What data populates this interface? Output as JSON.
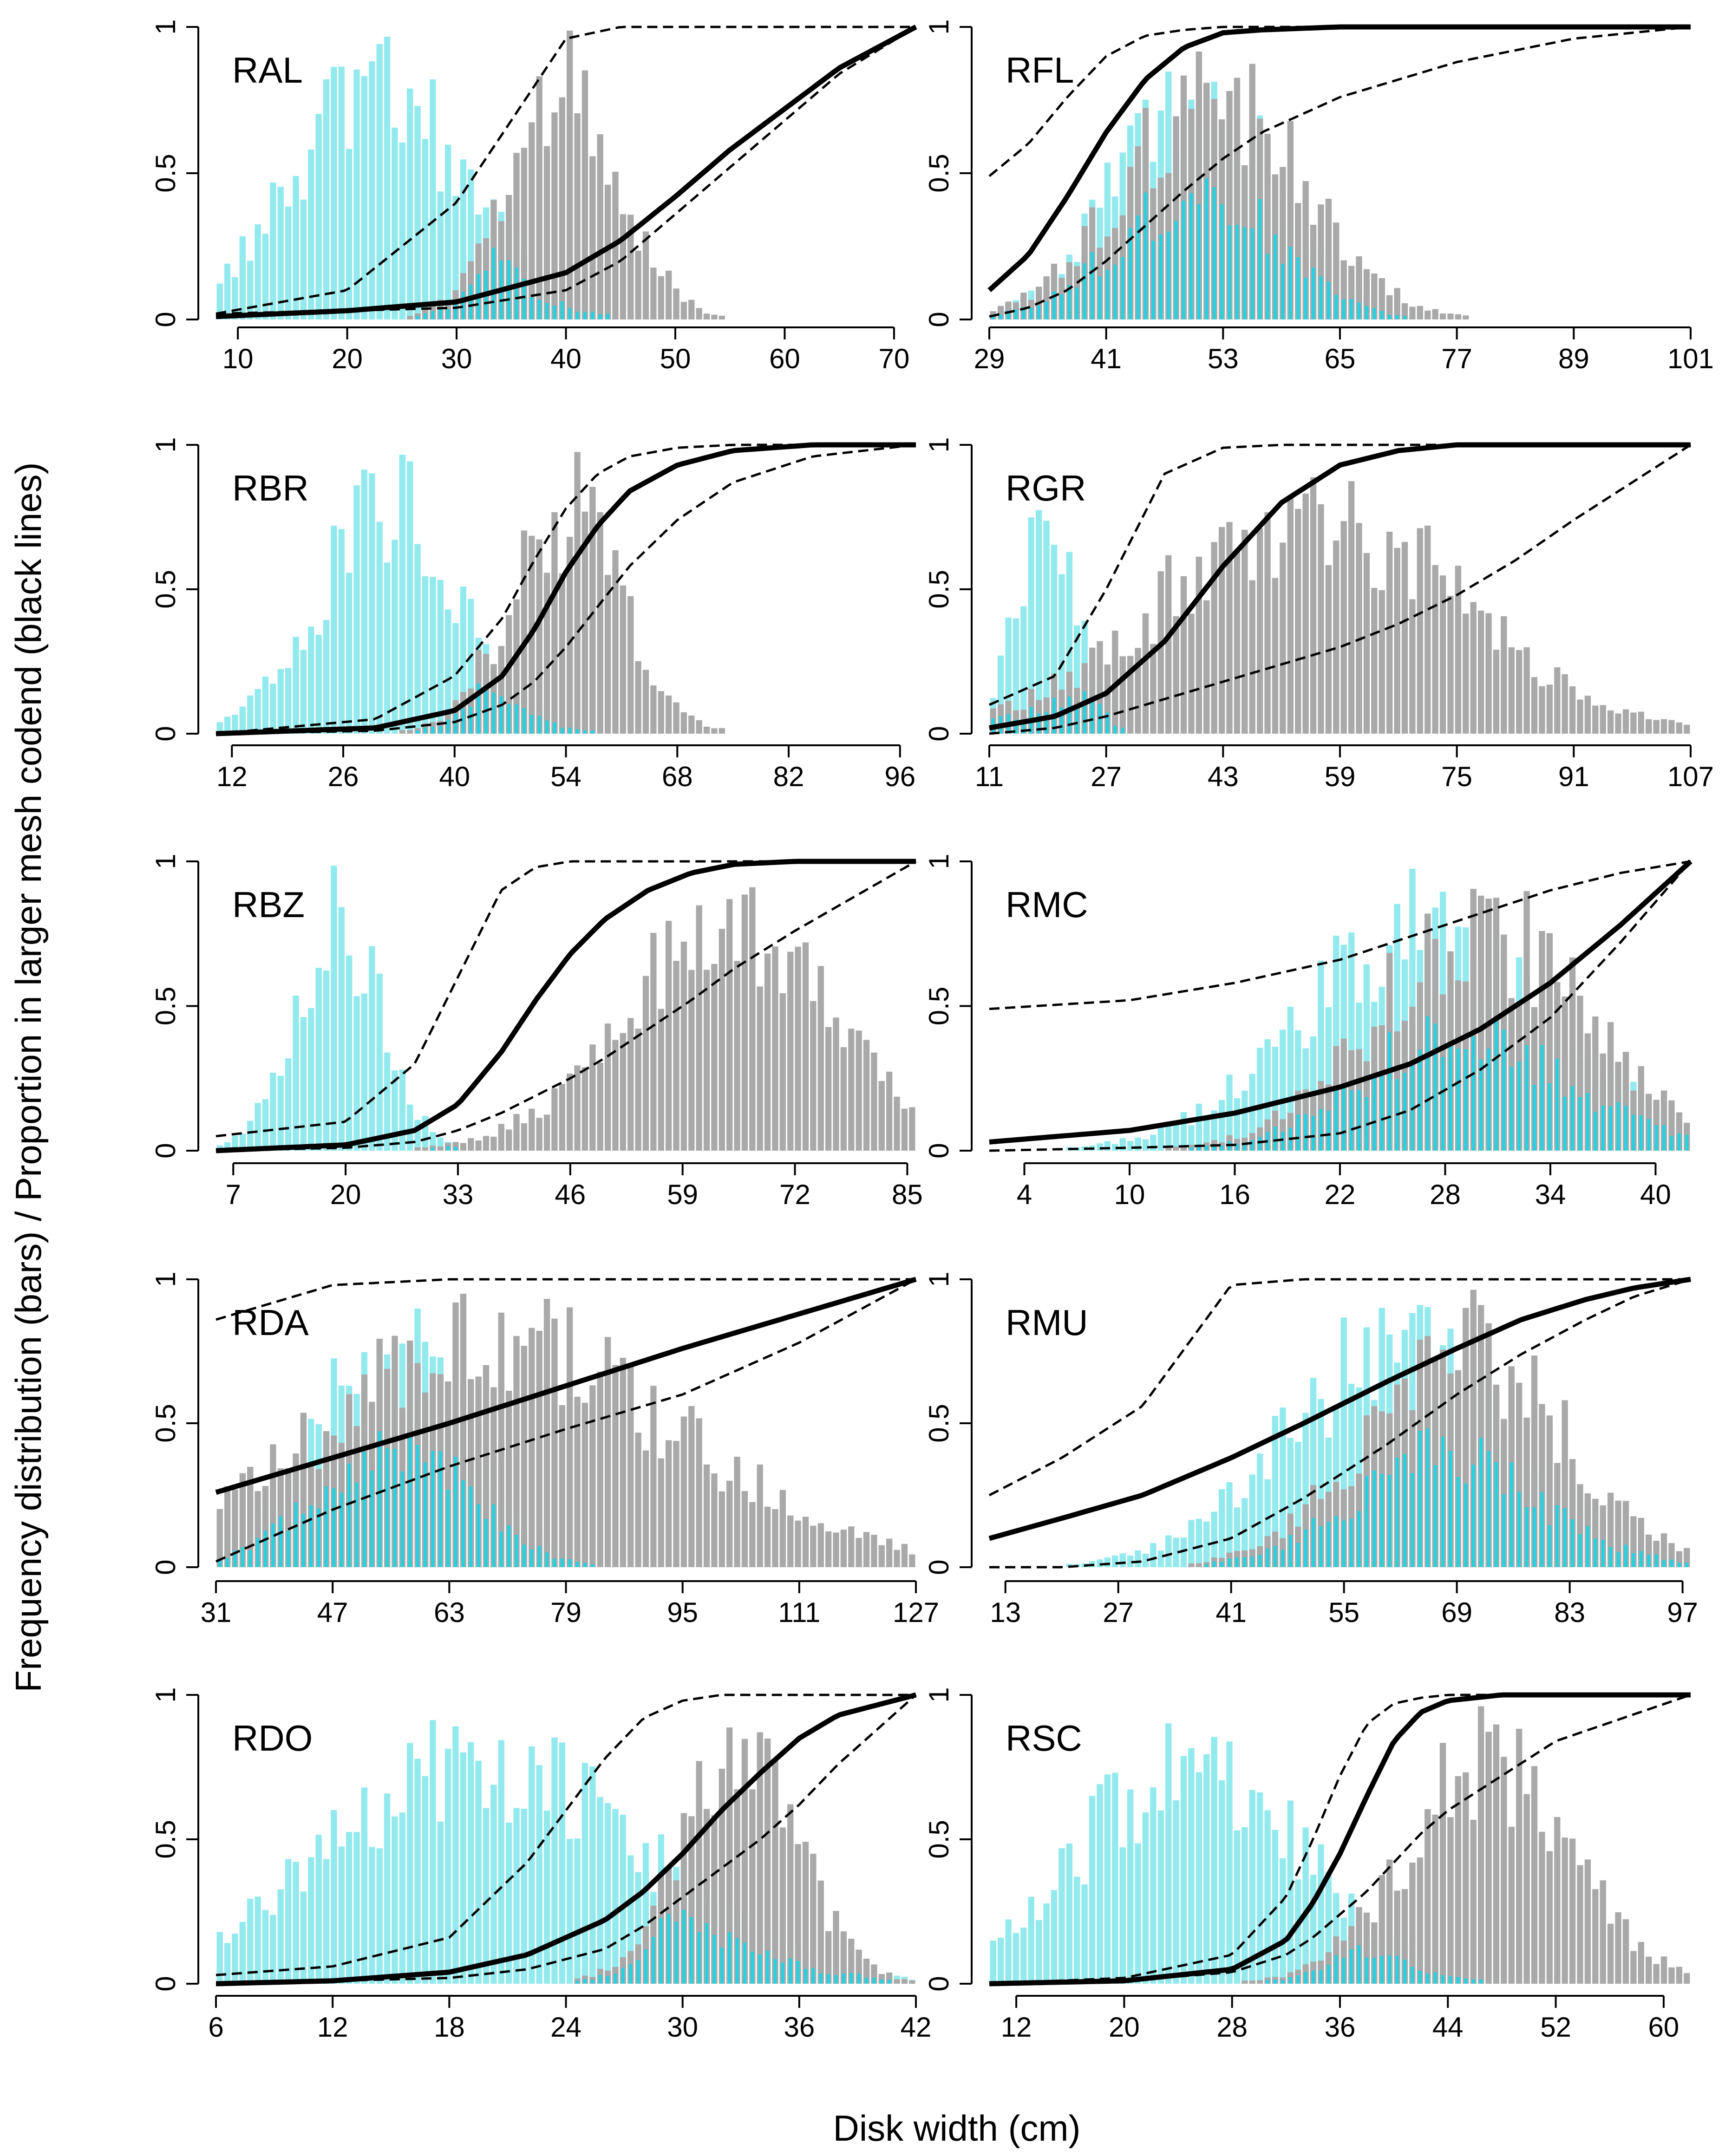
{
  "figure": {
    "ylabel": "Frequency  distribution  (bars)  /  Proportion  in  larger  mesh  codend  (black lines)",
    "xlabel": "Disk width (cm)"
  },
  "colors": {
    "smaller_mesh_bars": "#92E9EE",
    "overlap_bars": "#21D3E3",
    "larger_mesh_bars": "#A9A9A9",
    "lines": "#000000"
  },
  "chart_data": [
    {
      "type": "bar+line",
      "label": "RAL",
      "xticks": [
        10,
        20,
        30,
        40,
        50,
        60,
        70
      ],
      "xlim": [
        8,
        72
      ],
      "ylim": [
        0,
        1
      ],
      "yticks": [
        "0",
        "0.5",
        "1"
      ],
      "curve": {
        "x": [
          8,
          20,
          30,
          40,
          45,
          50,
          55,
          60,
          65,
          72
        ],
        "fit": [
          0.01,
          0.03,
          0.06,
          0.16,
          0.27,
          0.42,
          0.58,
          0.72,
          0.86,
          1.0
        ],
        "lower": [
          0.02,
          0.03,
          0.04,
          0.1,
          0.2,
          0.36,
          0.52,
          0.68,
          0.84,
          1.0
        ],
        "upper": [
          0.02,
          0.1,
          0.4,
          0.96,
          1.0,
          1.0,
          1.0,
          1.0,
          1.0,
          1.0
        ]
      },
      "smaller_mesh_peak": 23,
      "smaller_mesh_sd": 8,
      "larger_mesh_peak": 40,
      "larger_mesh_sd": 5
    },
    {
      "type": "bar+line",
      "label": "RFL",
      "xticks": [
        29,
        41,
        53,
        65,
        77,
        89,
        101
      ],
      "xlim": [
        29,
        101
      ],
      "ylim": [
        0,
        1
      ],
      "yticks": [
        "0",
        "0.5",
        "1"
      ],
      "curve": {
        "x": [
          29,
          33,
          37,
          41,
          45,
          49,
          53,
          57,
          65,
          77,
          89,
          101
        ],
        "fit": [
          0.1,
          0.22,
          0.42,
          0.64,
          0.82,
          0.93,
          0.98,
          0.99,
          1.0,
          1.0,
          1.0,
          1.0
        ],
        "lower": [
          0.01,
          0.04,
          0.1,
          0.2,
          0.32,
          0.44,
          0.55,
          0.64,
          0.76,
          0.88,
          0.96,
          1.0
        ],
        "upper": [
          0.49,
          0.6,
          0.76,
          0.9,
          0.97,
          0.99,
          1.0,
          1.0,
          1.0,
          1.0,
          1.0,
          1.0
        ]
      },
      "smaller_mesh_peak": 50,
      "smaller_mesh_sd": 8,
      "larger_mesh_peak": 52,
      "larger_mesh_sd": 9
    },
    {
      "type": "bar+line",
      "label": "RBR",
      "xticks": [
        12,
        26,
        40,
        54,
        68,
        82,
        96
      ],
      "xlim": [
        10,
        98
      ],
      "ylim": [
        0,
        1
      ],
      "yticks": [
        "0",
        "0.5",
        "1"
      ],
      "curve": {
        "x": [
          10,
          30,
          40,
          46,
          50,
          54,
          58,
          62,
          68,
          75,
          85,
          98
        ],
        "fit": [
          0.0,
          0.02,
          0.08,
          0.2,
          0.36,
          0.56,
          0.72,
          0.84,
          0.93,
          0.98,
          1.0,
          1.0
        ],
        "lower": [
          0.0,
          0.01,
          0.04,
          0.1,
          0.18,
          0.3,
          0.44,
          0.58,
          0.74,
          0.87,
          0.96,
          1.0
        ],
        "upper": [
          0.0,
          0.05,
          0.2,
          0.4,
          0.6,
          0.78,
          0.9,
          0.96,
          0.99,
          1.0,
          1.0,
          1.0
        ]
      },
      "smaller_mesh_peak": 32,
      "smaller_mesh_sd": 9,
      "larger_mesh_peak": 54,
      "larger_mesh_sd": 7
    },
    {
      "type": "bar+line",
      "label": "RGR",
      "xticks": [
        11,
        27,
        43,
        59,
        75,
        91,
        107
      ],
      "xlim": [
        11,
        107
      ],
      "ylim": [
        0,
        1
      ],
      "yticks": [
        "0",
        "0.5",
        "1"
      ],
      "curve": {
        "x": [
          11,
          20,
          27,
          35,
          43,
          51,
          59,
          67,
          75,
          83,
          91,
          99,
          107
        ],
        "fit": [
          0.02,
          0.06,
          0.14,
          0.32,
          0.58,
          0.8,
          0.93,
          0.98,
          1.0,
          1.0,
          1.0,
          1.0,
          1.0
        ],
        "lower": [
          0.0,
          0.02,
          0.06,
          0.12,
          0.18,
          0.24,
          0.3,
          0.38,
          0.48,
          0.6,
          0.74,
          0.87,
          1.0
        ],
        "upper": [
          0.1,
          0.2,
          0.5,
          0.9,
          0.99,
          1.0,
          1.0,
          1.0,
          1.0,
          1.0,
          1.0,
          1.0,
          1.0
        ]
      },
      "smaller_mesh_peak": 19,
      "smaller_mesh_sd": 4,
      "larger_mesh_peak": 55,
      "larger_mesh_sd": 20
    },
    {
      "type": "bar+line",
      "label": "RBZ",
      "xticks": [
        7,
        20,
        33,
        46,
        59,
        72,
        85
      ],
      "xlim": [
        5,
        86
      ],
      "ylim": [
        0,
        1
      ],
      "yticks": [
        "0",
        "0.5",
        "1"
      ],
      "curve": {
        "x": [
          5,
          20,
          28,
          33,
          38,
          42,
          46,
          50,
          55,
          60,
          65,
          72,
          86
        ],
        "fit": [
          0.0,
          0.02,
          0.07,
          0.16,
          0.34,
          0.52,
          0.68,
          0.8,
          0.9,
          0.96,
          0.99,
          1.0,
          1.0
        ],
        "lower": [
          0.0,
          0.01,
          0.03,
          0.07,
          0.13,
          0.19,
          0.25,
          0.32,
          0.42,
          0.52,
          0.63,
          0.76,
          1.0
        ],
        "upper": [
          0.05,
          0.1,
          0.3,
          0.6,
          0.9,
          0.98,
          1.0,
          1.0,
          1.0,
          1.0,
          1.0,
          1.0,
          1.0
        ]
      },
      "smaller_mesh_peak": 19,
      "smaller_mesh_sd": 5,
      "larger_mesh_peak": 64,
      "larger_mesh_sd": 12
    },
    {
      "type": "bar+line",
      "label": "RMC",
      "xticks": [
        4,
        10,
        16,
        22,
        28,
        34,
        40
      ],
      "xlim": [
        2,
        42
      ],
      "ylim": [
        0,
        1
      ],
      "yticks": [
        "0",
        "0.5",
        "1"
      ],
      "curve": {
        "x": [
          2,
          10,
          16,
          22,
          26,
          30,
          34,
          38,
          42
        ],
        "fit": [
          0.03,
          0.07,
          0.13,
          0.22,
          0.3,
          0.42,
          0.58,
          0.78,
          1.0
        ],
        "lower": [
          0.0,
          0.01,
          0.02,
          0.06,
          0.14,
          0.28,
          0.46,
          0.72,
          1.0
        ],
        "upper": [
          0.49,
          0.52,
          0.58,
          0.66,
          0.74,
          0.82,
          0.9,
          0.96,
          1.0
        ]
      },
      "smaller_mesh_peak": 27,
      "smaller_mesh_sd": 7,
      "larger_mesh_peak": 30,
      "larger_mesh_sd": 6
    },
    {
      "type": "bar+line",
      "label": "RDA",
      "xticks": [
        31,
        47,
        63,
        79,
        95,
        111,
        127
      ],
      "xlim": [
        31,
        127
      ],
      "ylim": [
        0,
        1
      ],
      "yticks": [
        "0",
        "0.5",
        "1"
      ],
      "curve": {
        "x": [
          31,
          47,
          63,
          79,
          95,
          111,
          127
        ],
        "fit": [
          0.26,
          0.38,
          0.5,
          0.63,
          0.76,
          0.88,
          1.0
        ],
        "lower": [
          0.02,
          0.2,
          0.35,
          0.48,
          0.6,
          0.78,
          1.0
        ],
        "upper": [
          0.86,
          0.98,
          1.0,
          1.0,
          1.0,
          1.0,
          1.0
        ]
      },
      "smaller_mesh_peak": 55,
      "smaller_mesh_sd": 10,
      "larger_mesh_peak": 70,
      "larger_mesh_sd": 25
    },
    {
      "type": "bar+line",
      "label": "RMU",
      "xticks": [
        13,
        27,
        41,
        55,
        69,
        83,
        97
      ],
      "xlim": [
        11,
        98
      ],
      "ylim": [
        0,
        1
      ],
      "yticks": [
        "0",
        "0.5",
        "1"
      ],
      "curve": {
        "x": [
          11,
          20,
          30,
          41,
          50,
          60,
          69,
          77,
          85,
          91,
          98
        ],
        "fit": [
          0.1,
          0.17,
          0.25,
          0.38,
          0.5,
          0.64,
          0.76,
          0.86,
          0.93,
          0.97,
          1.0
        ],
        "lower": [
          0.0,
          0.0,
          0.02,
          0.1,
          0.24,
          0.42,
          0.6,
          0.74,
          0.86,
          0.94,
          1.0
        ],
        "upper": [
          0.25,
          0.38,
          0.56,
          0.98,
          1.0,
          1.0,
          1.0,
          1.0,
          1.0,
          1.0,
          1.0
        ]
      },
      "smaller_mesh_peak": 62,
      "smaller_mesh_sd": 14,
      "larger_mesh_peak": 70,
      "larger_mesh_sd": 12
    },
    {
      "type": "bar+line",
      "label": "RDO",
      "xticks": [
        6,
        12,
        18,
        24,
        30,
        36,
        42
      ],
      "xlim": [
        6,
        42
      ],
      "ylim": [
        0,
        1
      ],
      "yticks": [
        "0",
        "0.5",
        "1"
      ],
      "curve": {
        "x": [
          6,
          12,
          18,
          22,
          26,
          28,
          30,
          32,
          34,
          36,
          38,
          42
        ],
        "fit": [
          0.0,
          0.01,
          0.04,
          0.1,
          0.22,
          0.32,
          0.45,
          0.6,
          0.73,
          0.85,
          0.93,
          1.0
        ],
        "lower": [
          0.0,
          0.01,
          0.02,
          0.05,
          0.12,
          0.2,
          0.3,
          0.4,
          0.5,
          0.62,
          0.76,
          1.0
        ],
        "upper": [
          0.03,
          0.06,
          0.16,
          0.42,
          0.78,
          0.92,
          0.98,
          1.0,
          1.0,
          1.0,
          1.0,
          1.0
        ]
      },
      "smaller_mesh_peak": 20,
      "smaller_mesh_sd": 8,
      "larger_mesh_peak": 33,
      "larger_mesh_sd": 3
    },
    {
      "type": "bar+line",
      "label": "RSC",
      "xticks": [
        12,
        20,
        28,
        36,
        44,
        52,
        60
      ],
      "xlim": [
        10,
        62
      ],
      "ylim": [
        0,
        1
      ],
      "yticks": [
        "0",
        "0.5",
        "1"
      ],
      "curve": {
        "x": [
          10,
          20,
          28,
          32,
          34,
          36,
          38,
          40,
          42,
          44,
          48,
          52,
          62
        ],
        "fit": [
          0.0,
          0.01,
          0.05,
          0.15,
          0.28,
          0.45,
          0.65,
          0.84,
          0.94,
          0.98,
          1.0,
          1.0,
          1.0
        ],
        "lower": [
          0.0,
          0.01,
          0.04,
          0.1,
          0.16,
          0.24,
          0.32,
          0.42,
          0.52,
          0.6,
          0.72,
          0.84,
          1.0
        ],
        "upper": [
          0.0,
          0.02,
          0.1,
          0.3,
          0.5,
          0.72,
          0.9,
          0.97,
          0.99,
          1.0,
          1.0,
          1.0,
          1.0
        ]
      },
      "smaller_mesh_peak": 25,
      "smaller_mesh_sd": 8,
      "larger_mesh_peak": 47,
      "larger_mesh_sd": 6
    }
  ]
}
